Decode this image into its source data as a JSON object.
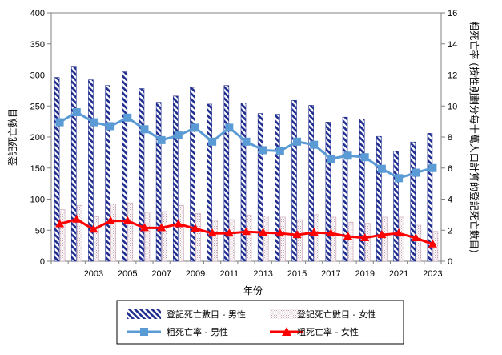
{
  "chart_data": {
    "type": "bar",
    "x": [
      2001,
      2002,
      2003,
      2004,
      2005,
      2006,
      2007,
      2008,
      2009,
      2010,
      2011,
      2012,
      2013,
      2014,
      2015,
      2016,
      2017,
      2018,
      2019,
      2020,
      2021,
      2022,
      2023
    ],
    "x_tick_labels": [
      "2003",
      "2005",
      "2007",
      "2009",
      "2011",
      "2013",
      "2015",
      "2017",
      "2019",
      "2021",
      "2023"
    ],
    "x_tick_values": [
      2003,
      2005,
      2007,
      2009,
      2011,
      2013,
      2015,
      2017,
      2019,
      2021,
      2023
    ],
    "xlabel": "年份",
    "ylabel": "登記死亡數目",
    "y2label": "粗死亡率 (按性別劃分每十萬人口計算的登記死亡數目)",
    "ylim": [
      0,
      400
    ],
    "y2lim": [
      0,
      16
    ],
    "yticks": [
      "0",
      "50",
      "100",
      "150",
      "200",
      "250",
      "300",
      "350",
      "400"
    ],
    "y2ticks": [
      "0",
      "2",
      "4",
      "6",
      "8",
      "10",
      "12",
      "14",
      "16"
    ],
    "grid": false,
    "legend_position": "bottom",
    "series": [
      {
        "name": "登記死亡數目 - 男性",
        "type": "bar",
        "axis": "left",
        "color": "#1f2d8f",
        "values": [
          296,
          314,
          292,
          283,
          305,
          278,
          256,
          266,
          280,
          253,
          283,
          255,
          238,
          237,
          259,
          251,
          224,
          232,
          229,
          201,
          177,
          192,
          206
        ]
      },
      {
        "name": "登記死亡數目 - 女性",
        "type": "bar",
        "axis": "left",
        "color": "#c8a2b4",
        "values": [
          83,
          90,
          72,
          92,
          94,
          79,
          80,
          90,
          77,
          66,
          67,
          74,
          73,
          71,
          67,
          75,
          71,
          63,
          61,
          71,
          71,
          58,
          48
        ]
      },
      {
        "name": "粗死亡率 - 男性",
        "type": "line",
        "axis": "right",
        "color": "#5b9bd5",
        "values": [
          8.95,
          9.6,
          8.95,
          8.7,
          9.25,
          8.5,
          7.8,
          8.1,
          8.6,
          7.7,
          8.6,
          7.7,
          7.15,
          7.1,
          7.7,
          7.5,
          6.6,
          6.8,
          6.7,
          5.95,
          5.35,
          5.7,
          6.0
        ]
      },
      {
        "name": "粗死亡率 - 女性",
        "type": "line",
        "axis": "right",
        "color": "#ff0000",
        "values": [
          2.4,
          2.7,
          2.05,
          2.6,
          2.6,
          2.15,
          2.15,
          2.4,
          2.1,
          1.8,
          1.8,
          1.9,
          1.85,
          1.8,
          1.7,
          1.85,
          1.8,
          1.6,
          1.5,
          1.7,
          1.8,
          1.5,
          1.1
        ]
      }
    ]
  }
}
